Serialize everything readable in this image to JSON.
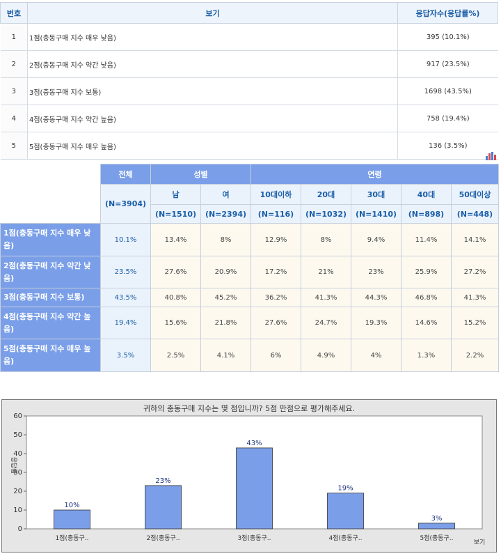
{
  "response_table": {
    "headers": {
      "no": "번호",
      "option": "보기",
      "count": "응답자수(응답률%)"
    },
    "rows": [
      {
        "no": "1",
        "option": "1점(충동구매 지수 매우 낮음)",
        "count": "395 (10.1%)"
      },
      {
        "no": "2",
        "option": "2점(충동구매 지수 약간 낮음)",
        "count": "917 (23.5%)"
      },
      {
        "no": "3",
        "option": "3점(충동구매 지수 보통)",
        "count": "1698 (43.5%)"
      },
      {
        "no": "4",
        "option": "4점(충동구매 지수 약간 높음)",
        "count": "758 (19.4%)"
      },
      {
        "no": "5",
        "option": "5점(충동구매 지수 매우 높음)",
        "count": "136 (3.5%)"
      }
    ]
  },
  "chart_icon": "bar-chart-icon",
  "cross_table": {
    "total_label": "전체",
    "total_n": "(N=3904)",
    "gender_label": "성별",
    "age_label": "연령",
    "gender_cols": [
      {
        "label": "남",
        "n": "(N=1510)"
      },
      {
        "label": "여",
        "n": "(N=2394)"
      }
    ],
    "age_cols": [
      {
        "label": "10대이하",
        "n": "(N=116)"
      },
      {
        "label": "20대",
        "n": "(N=1032)"
      },
      {
        "label": "30대",
        "n": "(N=1410)"
      },
      {
        "label": "40대",
        "n": "(N=898)"
      },
      {
        "label": "50대이상",
        "n": "(N=448)"
      }
    ],
    "rows": [
      {
        "label": "1점(충동구매 지수 매우 낮음)",
        "total": "10.1%",
        "cells": [
          "13.4%",
          "8%",
          "12.9%",
          "8%",
          "9.4%",
          "11.4%",
          "14.1%"
        ]
      },
      {
        "label": "2점(충동구매 지수 약간 낮음)",
        "total": "23.5%",
        "cells": [
          "27.6%",
          "20.9%",
          "17.2%",
          "21%",
          "23%",
          "25.9%",
          "27.2%"
        ]
      },
      {
        "label": "3점(충동구매 지수 보통)",
        "total": "43.5%",
        "cells": [
          "40.8%",
          "45.2%",
          "36.2%",
          "41.3%",
          "44.3%",
          "46.8%",
          "41.3%"
        ]
      },
      {
        "label": "4점(충동구매 지수 약간 높음)",
        "total": "19.4%",
        "cells": [
          "15.6%",
          "21.8%",
          "27.6%",
          "24.7%",
          "19.3%",
          "14.6%",
          "15.2%"
        ]
      },
      {
        "label": "5점(충동구매 지수 매우 높음)",
        "total": "3.5%",
        "cells": [
          "2.5%",
          "4.1%",
          "6%",
          "4.9%",
          "4%",
          "1.3%",
          "2.2%"
        ]
      }
    ]
  },
  "colors": {
    "bar": "#7b9ee8",
    "header": "#7a9fe8",
    "header_text": "#1a5ea8"
  },
  "chart_data": {
    "type": "bar",
    "title": "귀하의 충동구매 지수는 몇 점입니까? 5점 만점으로 평가해주세요.",
    "categories": [
      "1점(충동구..",
      "2점(충동구..",
      "3점(충동구..",
      "4점(충동구..",
      "5점(충동구.."
    ],
    "values": [
      10,
      23,
      43,
      19,
      3
    ],
    "value_labels": [
      "10%",
      "23%",
      "43%",
      "19%",
      "3%"
    ],
    "ylabel": "응답률",
    "xlabel": "보기",
    "ylim": [
      0,
      60
    ],
    "yticks": [
      0,
      10,
      20,
      30,
      40,
      50,
      60
    ],
    "grid": false
  }
}
